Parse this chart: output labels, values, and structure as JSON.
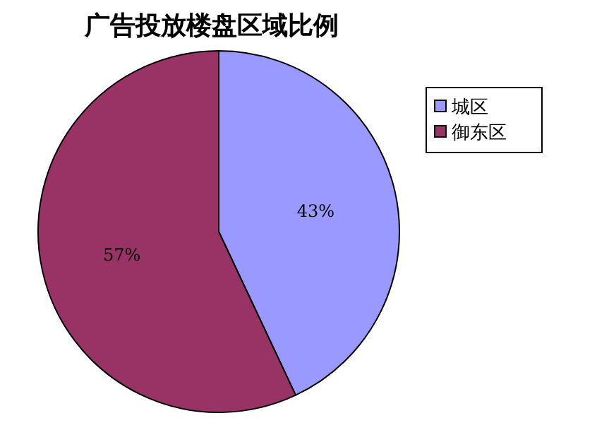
{
  "chart_data": {
    "type": "pie",
    "title": "广告投放楼盘区域比例",
    "categories": [
      "城区",
      "御东区"
    ],
    "values": [
      43,
      57
    ],
    "colors": [
      "#9999ff",
      "#993366"
    ],
    "value_labels": [
      "43%",
      "57%"
    ],
    "legend": "right"
  }
}
